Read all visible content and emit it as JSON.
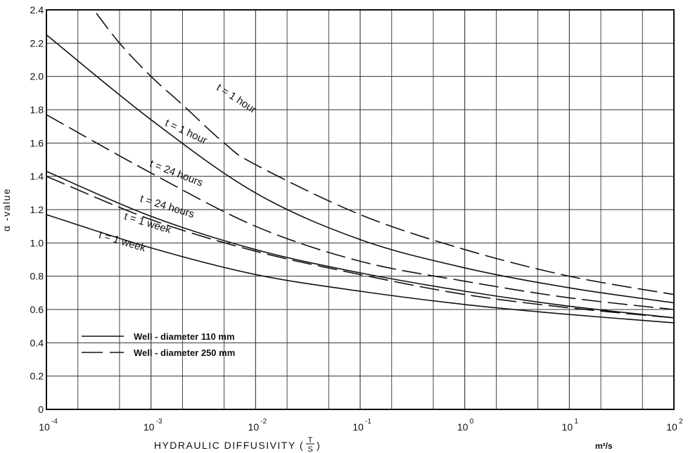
{
  "chart_data": {
    "type": "line",
    "xscale": "log",
    "xlim": [
      0.0001,
      100
    ],
    "ylim": [
      0,
      2.4
    ],
    "grid": true,
    "xlabel_main": "HYDRAULIC  DIFFUSIVITY  (",
    "xlabel_num": "T",
    "xlabel_den": "S",
    "xlabel_close": ")",
    "xunit": "m²/s",
    "ylabel": "α -value",
    "xticks": [
      {
        "base": "10",
        "exp": "-4",
        "value": 0.0001
      },
      {
        "base": "10",
        "exp": "-3",
        "value": 0.001
      },
      {
        "base": "10",
        "exp": "-2",
        "value": 0.01
      },
      {
        "base": "10",
        "exp": "-1",
        "value": 0.1
      },
      {
        "base": "10",
        "exp": "0",
        "value": 1
      },
      {
        "base": "10",
        "exp": "1",
        "value": 10
      },
      {
        "base": "10",
        "exp": "2",
        "value": 100
      }
    ],
    "yticks": [
      "0",
      "0.2",
      "0.4",
      "0.6",
      "0.8",
      "1.0",
      "1.2",
      "1.4",
      "1.6",
      "1.8",
      "2.0",
      "2.2",
      "2.4"
    ],
    "legend": {
      "position": "lower-left",
      "entries": [
        {
          "style": "solid",
          "label": "Well - diameter  110 mm"
        },
        {
          "style": "dashed",
          "label": "Well - diameter  250 mm"
        }
      ]
    },
    "series": [
      {
        "label": "t = 1 hour",
        "style": "dashed",
        "x": [
          0.0003,
          0.0005,
          0.001,
          0.002,
          0.005,
          0.01,
          0.1,
          1,
          10,
          100
        ],
        "y": [
          2.38,
          2.2,
          2.0,
          1.83,
          1.6,
          1.47,
          1.17,
          0.96,
          0.8,
          0.69
        ]
      },
      {
        "label": "t = 1 hour",
        "style": "solid",
        "x": [
          0.0001,
          0.001,
          0.01,
          0.1,
          1,
          10,
          100
        ],
        "y": [
          2.25,
          1.74,
          1.3,
          1.02,
          0.85,
          0.73,
          0.64
        ]
      },
      {
        "label": "t = 24 hours",
        "style": "dashed",
        "x": [
          0.0001,
          0.001,
          0.01,
          0.1,
          1,
          10,
          100
        ],
        "y": [
          1.77,
          1.42,
          1.1,
          0.89,
          0.77,
          0.67,
          0.6
        ]
      },
      {
        "label": "t = 24 hours",
        "style": "solid",
        "x": [
          0.0001,
          0.001,
          0.01,
          0.1,
          1,
          10,
          100
        ],
        "y": [
          1.43,
          1.16,
          0.96,
          0.82,
          0.71,
          0.62,
          0.55
        ]
      },
      {
        "label": "t = 1 week",
        "style": "dashed",
        "x": [
          0.0001,
          0.001,
          0.01,
          0.1,
          1,
          10,
          100
        ],
        "y": [
          1.4,
          1.14,
          0.95,
          0.81,
          0.69,
          0.61,
          0.55
        ]
      },
      {
        "label": "t = 1 week",
        "style": "solid",
        "x": [
          0.0001,
          0.001,
          0.01,
          0.1,
          1,
          10,
          100
        ],
        "y": [
          1.17,
          0.97,
          0.81,
          0.71,
          0.63,
          0.57,
          0.52
        ]
      }
    ],
    "curve_labels": [
      {
        "text": "t = 1 hour",
        "x": 0.0063,
        "y": 1.85,
        "angle": 33
      },
      {
        "text": "t = 1 hour",
        "x": 0.0021,
        "y": 1.65,
        "angle": 25
      },
      {
        "text": "t = 24 hours",
        "x": 0.0017,
        "y": 1.4,
        "angle": 21
      },
      {
        "text": "t = 24 hours",
        "x": 0.0014,
        "y": 1.2,
        "angle": 17
      },
      {
        "text": "t = 1 week",
        "x": 0.00091,
        "y": 1.1,
        "angle": 17
      },
      {
        "text": "t = 1 week",
        "x": 0.00052,
        "y": 0.99,
        "angle": 17
      }
    ]
  }
}
